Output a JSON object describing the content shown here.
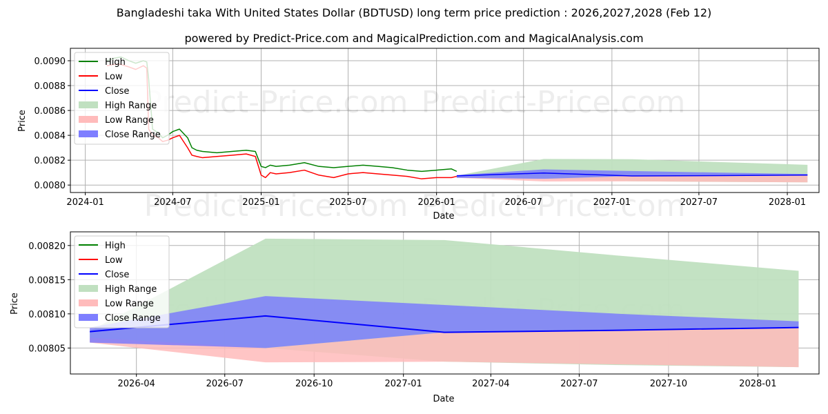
{
  "title": "Bangladeshi taka With United States Dollar (BDTUSD) long term price prediction : 2026,2027,2028 (Feb 12)",
  "subtitle": "powered by Predict-Price.com and MagicalPrediction.com and MagicalAnalysis.com",
  "watermark": "Predict-Price.com",
  "colors": {
    "high": "#008000",
    "low": "#ff0000",
    "close": "#0000ff",
    "high_range": "#c0e0c0",
    "low_range": "#ffbbbb",
    "close_range": "#7777ff"
  },
  "chart_data": [
    {
      "type": "line",
      "xlabel": "Date",
      "ylabel": "Price",
      "xlim": [
        "2023-12-01",
        "2028-03-07"
      ],
      "ylim": [
        0.00794,
        0.0091
      ],
      "x_ticks": [
        {
          "date": "2024-01-01",
          "label": "2024-01"
        },
        {
          "date": "2024-07-01",
          "label": "2024-07"
        },
        {
          "date": "2025-01-01",
          "label": "2025-01"
        },
        {
          "date": "2025-07-01",
          "label": "2025-07"
        },
        {
          "date": "2026-01-01",
          "label": "2026-01"
        },
        {
          "date": "2026-07-01",
          "label": "2026-07"
        },
        {
          "date": "2027-01-01",
          "label": "2027-01"
        },
        {
          "date": "2027-07-01",
          "label": "2027-07"
        },
        {
          "date": "2028-01-01",
          "label": "2028-01"
        }
      ],
      "y_ticks": [
        "0.0080",
        "0.0082",
        "0.0084",
        "0.0086",
        "0.0088",
        "0.0090"
      ],
      "legend": [
        "High",
        "Low",
        "Close",
        "High Range",
        "Low Range",
        "Close Range"
      ],
      "legend_position": "upper-left",
      "grid": true,
      "history": {
        "dates": [
          "2024-02-15",
          "2024-03-01",
          "2024-03-15",
          "2024-04-01",
          "2024-04-15",
          "2024-05-01",
          "2024-05-08",
          "2024-05-12",
          "2024-05-20",
          "2024-06-01",
          "2024-06-10",
          "2024-06-20",
          "2024-07-01",
          "2024-07-15",
          "2024-08-01",
          "2024-08-10",
          "2024-08-20",
          "2024-09-01",
          "2024-10-01",
          "2024-11-01",
          "2024-12-01",
          "2024-12-20",
          "2025-01-01",
          "2025-01-10",
          "2025-01-20",
          "2025-02-01",
          "2025-03-01",
          "2025-04-01",
          "2025-05-01",
          "2025-06-01",
          "2025-07-01",
          "2025-08-01",
          "2025-09-01",
          "2025-10-01",
          "2025-11-01",
          "2025-12-01",
          "2026-01-01",
          "2026-02-01",
          "2026-02-12"
        ],
        "high": [
          0.009,
          0.00902,
          0.00903,
          0.009,
          0.00898,
          0.009,
          0.00899,
          0.00885,
          0.00845,
          0.00842,
          0.00838,
          0.0084,
          0.00843,
          0.00845,
          0.00838,
          0.0083,
          0.00828,
          0.00827,
          0.00826,
          0.00827,
          0.00828,
          0.00827,
          0.00815,
          0.00814,
          0.00816,
          0.00815,
          0.00816,
          0.00818,
          0.00815,
          0.00814,
          0.00815,
          0.00816,
          0.00815,
          0.00814,
          0.00812,
          0.00811,
          0.00812,
          0.00813,
          0.00811
        ],
        "low": [
          0.00896,
          0.00897,
          0.00897,
          0.00895,
          0.00893,
          0.00896,
          0.00894,
          0.00845,
          0.0084,
          0.00838,
          0.00835,
          0.00836,
          0.00838,
          0.0084,
          0.0083,
          0.00824,
          0.00823,
          0.00822,
          0.00823,
          0.00824,
          0.00825,
          0.00823,
          0.00808,
          0.00806,
          0.0081,
          0.00809,
          0.0081,
          0.00812,
          0.00808,
          0.00806,
          0.00809,
          0.0081,
          0.00809,
          0.00808,
          0.00807,
          0.00805,
          0.00806,
          0.00806,
          0.00807
        ]
      },
      "forecast": {
        "dates": [
          "2026-02-12",
          "2026-08-12",
          "2027-02-12",
          "2027-08-12",
          "2028-02-12"
        ],
        "close": [
          0.008074,
          0.008097,
          0.008073,
          0.008076,
          0.00808
        ],
        "high_range": [
          [
            0.008058,
            0.008075
          ],
          [
            0.00805,
            0.00821
          ],
          [
            0.00803,
            0.008208
          ],
          [
            0.008025,
            0.008185
          ],
          [
            0.008022,
            0.008163
          ]
        ],
        "low_range": [
          [
            0.008058,
            0.008065
          ],
          [
            0.008029,
            0.00805
          ],
          [
            0.00803,
            0.008073
          ],
          [
            0.008026,
            0.008076
          ],
          [
            0.008022,
            0.00808
          ]
        ],
        "close_range": [
          [
            0.008058,
            0.00808
          ],
          [
            0.00805,
            0.008126
          ],
          [
            0.008073,
            0.008113
          ],
          [
            0.008076,
            0.0081
          ],
          [
            0.00808,
            0.008089
          ]
        ]
      }
    },
    {
      "type": "area",
      "xlabel": "Date",
      "ylabel": "Price",
      "xlim": [
        "2026-01-23",
        "2028-03-04"
      ],
      "ylim": [
        0.008012,
        0.00822
      ],
      "x_ticks": [
        {
          "date": "2026-04-01",
          "label": "2026-04"
        },
        {
          "date": "2026-07-01",
          "label": "2026-07"
        },
        {
          "date": "2026-10-01",
          "label": "2026-10"
        },
        {
          "date": "2027-01-01",
          "label": "2027-01"
        },
        {
          "date": "2027-04-01",
          "label": "2027-04"
        },
        {
          "date": "2027-07-01",
          "label": "2027-07"
        },
        {
          "date": "2027-10-01",
          "label": "2027-10"
        },
        {
          "date": "2028-01-01",
          "label": "2028-01"
        }
      ],
      "y_ticks": [
        "0.00805",
        "0.00810",
        "0.00815",
        "0.00820"
      ],
      "legend": [
        "High",
        "Low",
        "Close",
        "High Range",
        "Low Range",
        "Close Range"
      ],
      "legend_position": "upper-left",
      "grid": true
    }
  ]
}
